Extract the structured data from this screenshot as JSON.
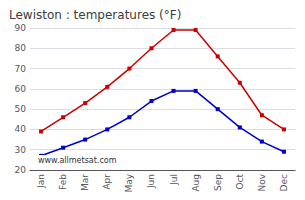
{
  "chart_data": {
    "type": "line",
    "title": "Lewiston : temperatures (°F)",
    "categories": [
      "Jan",
      "Feb",
      "Mar",
      "Apr",
      "May",
      "Jun",
      "Jul",
      "Aug",
      "Sep",
      "Oct",
      "Nov",
      "Dec"
    ],
    "series": [
      {
        "color": "#cc0000",
        "values": [
          39,
          46,
          53,
          61,
          70,
          80,
          89,
          89,
          76,
          63,
          47,
          40
        ]
      },
      {
        "color": "#0000cc",
        "values": [
          27,
          31,
          35,
          40,
          46,
          54,
          59,
          59,
          50,
          41,
          34,
          29
        ]
      }
    ],
    "ylim": [
      20,
      90
    ],
    "yticks": [
      20,
      30,
      40,
      50,
      60,
      70,
      80,
      90
    ],
    "grid": true,
    "marker": "square",
    "annotations": [
      "www.allmetsat.com"
    ]
  }
}
